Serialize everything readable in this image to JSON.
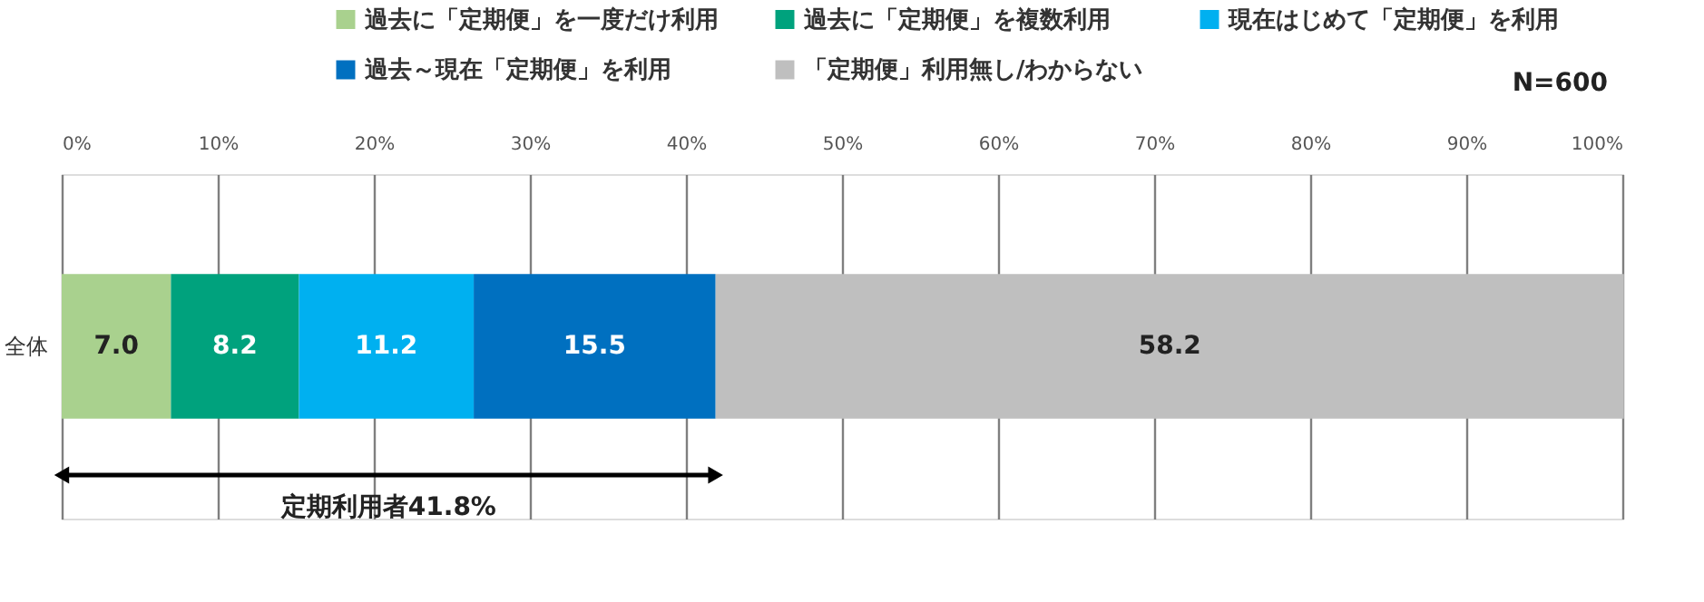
{
  "chart_data": {
    "type": "bar",
    "orientation": "horizontal",
    "stacked": true,
    "categories": [
      "全体"
    ],
    "series": [
      {
        "name": "過去に「定期便」を一度だけ利用",
        "color": "#a9d18e",
        "values": [
          7.0
        ],
        "value_labels": [
          "7.0"
        ]
      },
      {
        "name": "過去に「定期便」を複数利用",
        "color": "#00a27d",
        "values": [
          8.2
        ],
        "value_labels": [
          "8.2"
        ]
      },
      {
        "name": "現在はじめて「定期便」を利用",
        "color": "#00b0f0",
        "values": [
          11.2
        ],
        "value_labels": [
          "11.2"
        ]
      },
      {
        "name": "過去～現在「定期便」を利用",
        "color": "#0070c0",
        "values": [
          15.5
        ],
        "value_labels": [
          "15.5"
        ]
      },
      {
        "name": "「定期便」利用無し/わからない",
        "color": "#bfbfbf",
        "values": [
          58.2
        ],
        "value_labels": [
          "58.2"
        ]
      }
    ],
    "xlim": [
      0,
      100
    ],
    "xticks": [
      {
        "value": 0,
        "label": "0%"
      },
      {
        "value": 10,
        "label": "10%"
      },
      {
        "value": 20,
        "label": "20%"
      },
      {
        "value": 30,
        "label": "30%"
      },
      {
        "value": 40,
        "label": "40%"
      },
      {
        "value": 50,
        "label": "50%"
      },
      {
        "value": 60,
        "label": "60%"
      },
      {
        "value": 70,
        "label": "70%"
      },
      {
        "value": 80,
        "label": "80%"
      },
      {
        "value": 90,
        "label": "90%"
      },
      {
        "value": 100,
        "label": "100%"
      }
    ],
    "grid": "x",
    "legend": "top",
    "annotations": [
      "N=600",
      "定期利用者41.8%"
    ]
  }
}
